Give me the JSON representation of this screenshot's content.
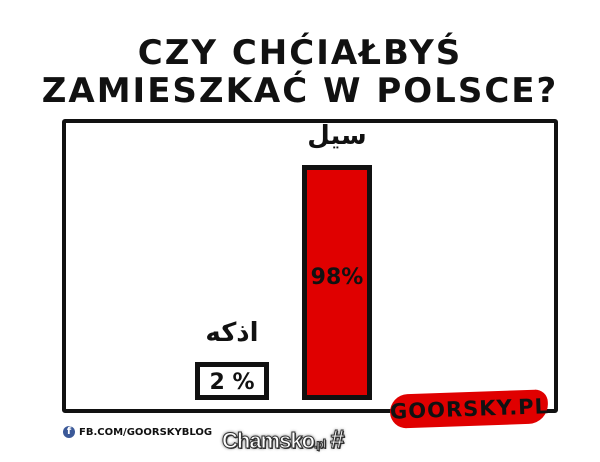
{
  "title": {
    "line1": "CZY CHĆIAŁBYŚ",
    "line2": "ZAMIESZKAĆ W POLSCE?"
  },
  "chart_data": {
    "type": "bar",
    "categories": [
      "اذكه",
      "سيل"
    ],
    "values": [
      2,
      98
    ],
    "value_labels": [
      "2 %",
      "98%"
    ],
    "colors": [
      "#ffffff",
      "#e00000"
    ],
    "ylim": [
      0,
      100
    ]
  },
  "footer": {
    "brand": "GOORSKY.PL",
    "brand_color": "#e00000",
    "facebook": "FB.COM/GOORSKYBLOG",
    "watermark": "Chamsko",
    "watermark_suffix": ".pl"
  }
}
